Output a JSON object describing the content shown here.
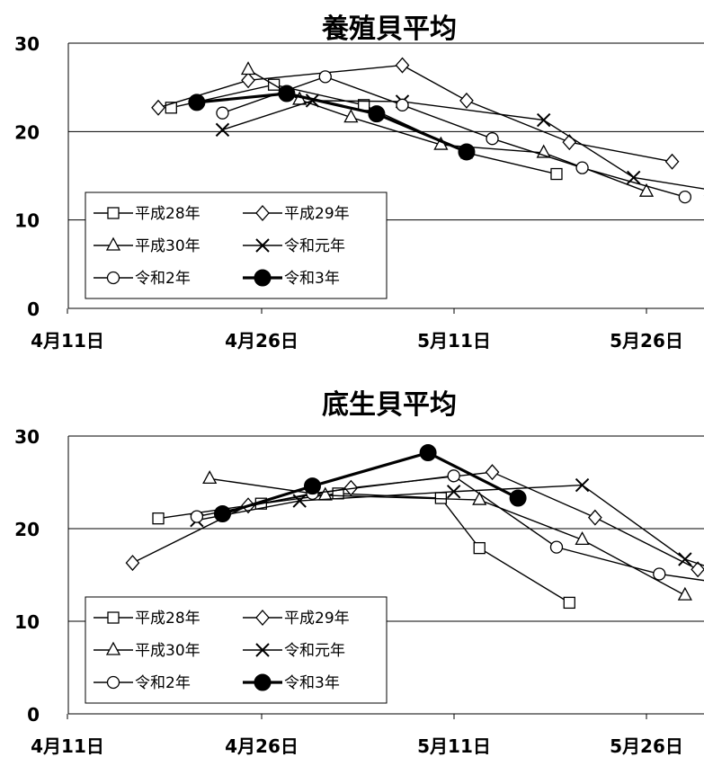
{
  "chart_data": [
    {
      "type": "line",
      "title": "養殖貝平均",
      "xlabel": "",
      "ylabel": "",
      "x_ticks": [
        "4月11日",
        "4月26日",
        "5月11日",
        "5月26日"
      ],
      "y_ticks": [
        "0",
        "10",
        "20",
        "30"
      ],
      "ylim": [
        0,
        30
      ],
      "grid": "horizontal",
      "legend_position": "bottom-left",
      "series": [
        {
          "name": "平成28年",
          "marker": "square",
          "points": [
            [
              "4/19",
              22.7
            ],
            [
              "4/27",
              25.3
            ],
            [
              "5/4",
              23.0
            ],
            [
              "5/12",
              17.6
            ],
            [
              "5/19",
              15.2
            ]
          ]
        },
        {
          "name": "平成29年",
          "marker": "diamond",
          "points": [
            [
              "4/18",
              22.7
            ],
            [
              "4/25",
              25.8
            ],
            [
              "5/7",
              27.5
            ],
            [
              "5/12",
              23.5
            ],
            [
              "5/20",
              18.8
            ],
            [
              "5/28",
              16.6
            ]
          ]
        },
        {
          "name": "平成30年",
          "marker": "triangle",
          "points": [
            [
              "4/25",
              27.0
            ],
            [
              "4/29",
              23.6
            ],
            [
              "5/3",
              21.6
            ],
            [
              "5/10",
              18.5
            ],
            [
              "5/18",
              17.6
            ],
            [
              "5/26",
              13.2
            ]
          ]
        },
        {
          "name": "令和元年",
          "marker": "x",
          "points": [
            [
              "4/23",
              20.2
            ],
            [
              "4/30",
              23.5
            ],
            [
              "5/7",
              23.4
            ],
            [
              "5/18",
              21.3
            ],
            [
              "5/25",
              14.8
            ],
            [
              "5/31",
              13.4
            ]
          ]
        },
        {
          "name": "令和2年",
          "marker": "circle",
          "points": [
            [
              "4/23",
              22.1
            ],
            [
              "5/1",
              26.2
            ],
            [
              "5/7",
              23.0
            ],
            [
              "5/14",
              19.2
            ],
            [
              "5/21",
              15.9
            ],
            [
              "5/29",
              12.6
            ]
          ]
        },
        {
          "name": "令和3年",
          "marker": "filled-circle",
          "points": [
            [
              "4/21",
              23.3
            ],
            [
              "4/28",
              24.3
            ],
            [
              "5/5",
              22.0
            ],
            [
              "5/12",
              17.7
            ]
          ]
        }
      ],
      "legend": [
        "平成28年",
        "平成29年",
        "平成30年",
        "令和元年",
        "令和2年",
        "令和3年"
      ]
    },
    {
      "type": "line",
      "title": "底生貝平均",
      "xlabel": "",
      "ylabel": "",
      "x_ticks": [
        "4月11日",
        "4月26日",
        "5月11日",
        "5月26日"
      ],
      "y_ticks": [
        "0",
        "10",
        "20",
        "30"
      ],
      "ylim": [
        0,
        30
      ],
      "grid": "horizontal",
      "legend_position": "bottom-left",
      "series": [
        {
          "name": "平成28年",
          "marker": "square",
          "points": [
            [
              "4/18",
              21.1
            ],
            [
              "4/26",
              22.7
            ],
            [
              "5/2",
              23.8
            ],
            [
              "5/10",
              23.3
            ],
            [
              "5/13",
              17.9
            ],
            [
              "5/20",
              12.0
            ]
          ]
        },
        {
          "name": "平成29年",
          "marker": "diamond",
          "points": [
            [
              "4/16",
              16.3
            ],
            [
              "4/25",
              22.5
            ],
            [
              "5/3",
              24.4
            ],
            [
              "5/14",
              26.1
            ],
            [
              "5/22",
              21.2
            ],
            [
              "5/30",
              15.6
            ]
          ]
        },
        {
          "name": "平成30年",
          "marker": "triangle",
          "points": [
            [
              "4/22",
              25.4
            ],
            [
              "5/1",
              23.6
            ],
            [
              "5/13",
              23.1
            ],
            [
              "5/21",
              18.8
            ],
            [
              "5/29",
              12.8
            ]
          ]
        },
        {
          "name": "令和元年",
          "marker": "x",
          "points": [
            [
              "4/21",
              20.9
            ],
            [
              "4/29",
              23.0
            ],
            [
              "5/11",
              24.0
            ],
            [
              "5/21",
              24.7
            ],
            [
              "5/29",
              16.7
            ],
            [
              "6/4",
              13.9
            ]
          ]
        },
        {
          "name": "令和2年",
          "marker": "circle",
          "points": [
            [
              "4/21",
              21.3
            ],
            [
              "4/30",
              23.8
            ],
            [
              "5/11",
              25.7
            ],
            [
              "5/19",
              18.0
            ],
            [
              "5/27",
              15.1
            ],
            [
              "6/3",
              13.7
            ]
          ]
        },
        {
          "name": "令和3年",
          "marker": "filled-circle",
          "points": [
            [
              "4/23",
              21.6
            ],
            [
              "4/30",
              24.6
            ],
            [
              "5/9",
              28.2
            ],
            [
              "5/16",
              23.3
            ]
          ]
        }
      ],
      "legend": [
        "平成28年",
        "平成29年",
        "平成30年",
        "令和元年",
        "令和2年",
        "令和3年"
      ]
    }
  ]
}
